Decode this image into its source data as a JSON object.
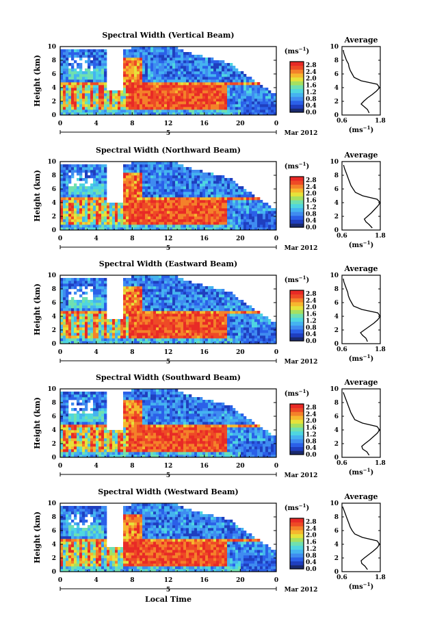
{
  "chart_data": {
    "type": "heatmap",
    "figure_xlabel": "Local Time",
    "date_label": "Mar 2012",
    "day_label": "5",
    "colorbar": {
      "unit": "(ms",
      "unit_exp": "−1",
      "unit_close": ")",
      "ticks": [
        "0.0",
        "0.4",
        "0.8",
        "1.2",
        "1.6",
        "2.0",
        "2.4",
        "2.8"
      ],
      "range": [
        0.0,
        3.0
      ],
      "colors": [
        "#1a2a6e",
        "#1f3fbf",
        "#2b60e8",
        "#3f8cf0",
        "#45b3f0",
        "#4fd6e0",
        "#6fe0b0",
        "#a6e060",
        "#e6e23a",
        "#f6b72e",
        "#f4812a",
        "#ee4a26",
        "#e82a26"
      ]
    },
    "heatmap_axes": {
      "xlim": [
        0,
        24
      ],
      "xticks": [
        "0",
        "4",
        "8",
        "12",
        "16",
        "20",
        "0"
      ],
      "ylim": [
        0,
        10
      ],
      "yticks": [
        "0",
        "2",
        "4",
        "6",
        "8",
        "10"
      ],
      "ylabel": "Height (km)"
    },
    "profile_axes": {
      "title": "Average",
      "xlim": [
        0.6,
        1.8
      ],
      "xticks": [
        "0.6",
        "1.8"
      ],
      "ylim": [
        0,
        10
      ],
      "yticks": [
        "0",
        "2",
        "4",
        "6",
        "8",
        "10"
      ],
      "xlabel": "(ms",
      "xlabel_exp": "−1",
      "xlabel_close": ")"
    },
    "panels": [
      {
        "title": "Spectral Width (Vertical Beam)",
        "profile": {
          "height_km": [
            0.3,
            0.8,
            1.2,
            1.6,
            2.0,
            2.5,
            3.0,
            3.5,
            4.0,
            4.5,
            5.0,
            5.5,
            6.0,
            6.5,
            7.0,
            7.5,
            8.0,
            8.5,
            9.0,
            9.5
          ],
          "width": [
            1.45,
            1.4,
            1.3,
            1.2,
            1.28,
            1.4,
            1.55,
            1.68,
            1.78,
            1.7,
            1.2,
            0.98,
            0.92,
            0.86,
            0.82,
            0.8,
            0.74,
            0.7,
            0.66,
            0.64
          ]
        }
      },
      {
        "title": "Spectral Width (Northward Beam)",
        "profile": {
          "height_km": [
            0.3,
            0.8,
            1.2,
            1.6,
            2.0,
            2.5,
            3.0,
            3.5,
            4.0,
            4.5,
            5.0,
            5.5,
            6.0,
            6.5,
            7.0,
            7.5,
            8.0,
            8.5,
            9.0,
            9.5
          ],
          "width": [
            1.55,
            1.45,
            1.35,
            1.3,
            1.4,
            1.52,
            1.62,
            1.72,
            1.8,
            1.7,
            1.25,
            1.02,
            0.95,
            0.88,
            0.84,
            0.8,
            0.76,
            0.72,
            0.68,
            0.65
          ]
        }
      },
      {
        "title": "Spectral Width (Eastward Beam)",
        "profile": {
          "height_km": [
            0.3,
            0.8,
            1.2,
            1.6,
            2.0,
            2.5,
            3.0,
            3.5,
            4.0,
            4.5,
            5.0,
            5.5,
            6.0,
            6.5,
            7.0,
            7.5,
            8.0,
            8.5,
            9.0,
            9.5
          ],
          "width": [
            1.4,
            1.35,
            1.25,
            1.18,
            1.3,
            1.45,
            1.6,
            1.72,
            1.8,
            1.72,
            1.22,
            0.96,
            0.9,
            0.84,
            0.8,
            0.78,
            0.74,
            0.7,
            0.66,
            0.64
          ]
        }
      },
      {
        "title": "Spectral Width (Southward Beam)",
        "profile": {
          "height_km": [
            0.3,
            0.8,
            1.2,
            1.6,
            2.0,
            2.5,
            3.0,
            3.5,
            4.0,
            4.5,
            5.0,
            5.5,
            6.0,
            6.5,
            7.0,
            7.5,
            8.0,
            8.5,
            9.0,
            9.5
          ],
          "width": [
            1.45,
            1.38,
            1.25,
            1.22,
            1.32,
            1.46,
            1.58,
            1.7,
            1.78,
            1.7,
            1.24,
            1.0,
            0.94,
            0.88,
            0.84,
            0.8,
            0.76,
            0.72,
            0.68,
            0.64
          ]
        }
      },
      {
        "title": "Spectral Width (Westward Beam)",
        "profile": {
          "height_km": [
            0.3,
            0.8,
            1.2,
            1.6,
            2.0,
            2.5,
            3.0,
            3.5,
            4.0,
            4.5,
            5.0,
            5.5,
            6.0,
            6.5,
            7.0,
            7.5,
            8.0,
            8.5,
            9.0,
            9.5
          ],
          "width": [
            1.4,
            1.32,
            1.22,
            1.2,
            1.3,
            1.44,
            1.58,
            1.7,
            1.78,
            1.7,
            1.24,
            1.0,
            0.92,
            0.86,
            0.82,
            0.78,
            0.74,
            0.7,
            0.66,
            0.62
          ]
        }
      }
    ]
  }
}
